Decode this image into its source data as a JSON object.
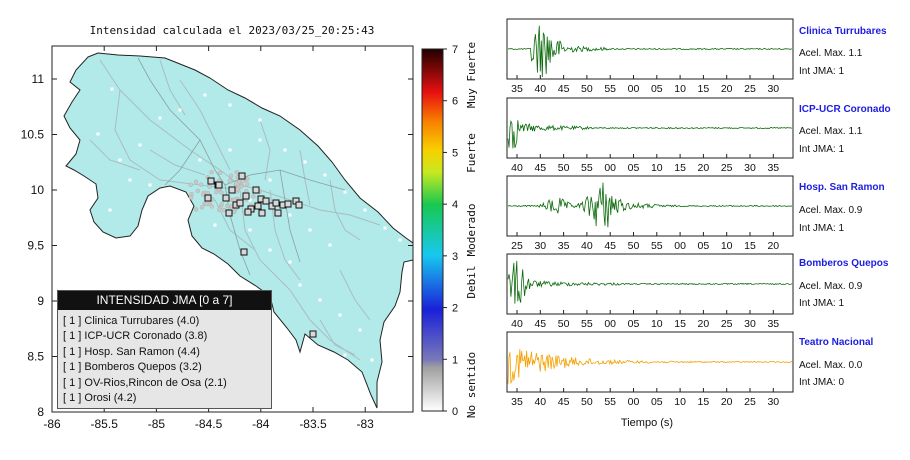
{
  "map": {
    "title": "Intensidad calculada el 2023/03/25_20:25:43",
    "x_ticks": [
      "-86",
      "-85.5",
      "-85",
      "-84.5",
      "-84",
      "-83.5",
      "-83"
    ],
    "y_ticks": [
      "11",
      "10.5",
      "10",
      "9.5",
      "9",
      "8.5",
      "8"
    ],
    "colorbar_ticks": [
      "0",
      "1",
      "2",
      "3",
      "4",
      "5",
      "6",
      "7"
    ],
    "colorbar_labels": [
      "No sentido",
      "Debil",
      "Moderado",
      "Fuerte",
      "Muy Fuerte"
    ],
    "colors": {
      "land": "#b2eaea",
      "sea": "#ffffff",
      "coast": "#222222",
      "roads": "#a9bdbd"
    }
  },
  "legend": {
    "title": "INTENSIDAD JMA [0 a 7]",
    "items": [
      "[ 1 ]  Clinica Turrubares (4.0)",
      "[ 1 ]  ICP-UCR Coronado (3.8)",
      "[ 1 ]  Hosp. San Ramon (4.4)",
      "[ 1 ]  Bomberos Quepos (3.2)",
      "[ 1 ]  OV-Rios,Rincon de Osa (2.1)",
      "[ 1 ]  Orosi (4.2)"
    ]
  },
  "stations": [
    {
      "name": "Clinica Turrubares",
      "accel": "Acel. Max. 1.1",
      "jma": "Int JMA: 1",
      "ticks": [
        "35",
        "40",
        "45",
        "50",
        "55",
        "00",
        "05",
        "10",
        "15",
        "20",
        "25",
        "30"
      ],
      "color": "#0a6a0a"
    },
    {
      "name": "ICP-UCR Coronado",
      "accel": "Acel. Max. 1.1",
      "jma": "Int JMA: 1",
      "ticks": [
        "40",
        "45",
        "50",
        "55",
        "00",
        "05",
        "10",
        "15",
        "20",
        "25",
        "30",
        "35"
      ],
      "color": "#0a6a0a"
    },
    {
      "name": "Hosp. San Ramon",
      "accel": "Acel. Max. 0.9",
      "jma": "Int JMA: 1",
      "ticks": [
        "25",
        "30",
        "35",
        "40",
        "45",
        "50",
        "55",
        "00",
        "05",
        "10",
        "15",
        "20"
      ],
      "color": "#0a6a0a"
    },
    {
      "name": "Bomberos Quepos",
      "accel": "Acel. Max. 0.9",
      "jma": "Int JMA: 1",
      "ticks": [
        "40",
        "45",
        "50",
        "55",
        "00",
        "05",
        "10",
        "15",
        "20",
        "25",
        "30",
        "35"
      ],
      "color": "#0a6a0a"
    },
    {
      "name": "Teatro Nacional",
      "accel": "Acel. Max. 0.0",
      "jma": "Int JMA: 0",
      "ticks": [
        "35",
        "40",
        "45",
        "50",
        "55",
        "00",
        "05",
        "10",
        "15",
        "20",
        "25",
        "30"
      ],
      "color": "#f5a000"
    }
  ],
  "xlabel": "Tiempo (s)",
  "chart_data": [
    {
      "type": "scatter",
      "title": "Intensidad calculada el 2023/03/25_20:25:43",
      "xlim": [
        -86,
        -82.6
      ],
      "ylim": [
        8,
        11.3
      ],
      "colorbar": {
        "range": [
          0,
          7
        ],
        "labels": [
          "No sentido",
          "Debil",
          "Moderado",
          "Fuerte",
          "Muy Fuerte"
        ]
      }
    },
    {
      "type": "line",
      "series": [
        {
          "name": "Clinica Turrubares",
          "accel_max": 1.1,
          "jma": 1
        },
        {
          "name": "ICP-UCR Coronado",
          "accel_max": 1.1,
          "jma": 1
        },
        {
          "name": "Hosp. San Ramon",
          "accel_max": 0.9,
          "jma": 1
        },
        {
          "name": "Bomberos Quepos",
          "accel_max": 0.9,
          "jma": 1
        },
        {
          "name": "Teatro Nacional",
          "accel_max": 0.0,
          "jma": 0
        }
      ],
      "xlabel": "Tiempo (s)"
    }
  ]
}
